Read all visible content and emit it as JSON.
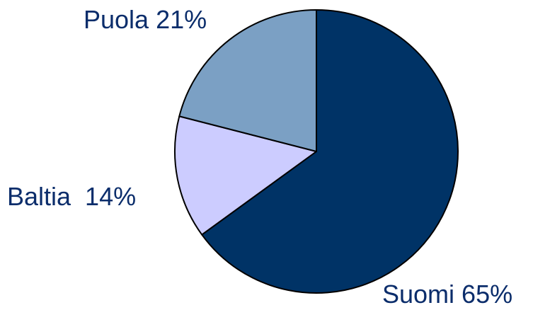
{
  "chart_data": {
    "type": "pie",
    "title": "",
    "slices": [
      {
        "category": "Suomi",
        "value": 65,
        "label": "Suomi 65%",
        "color": "#003366"
      },
      {
        "category": "Baltia",
        "value": 14,
        "label": "Baltia  14%",
        "color": "#CCCCFF"
      },
      {
        "category": "Puola",
        "value": 21,
        "label": "Puola 21%",
        "color": "#7BA0C4"
      }
    ],
    "start_angle": "12 o'clock",
    "direction": "clockwise",
    "legend": "none",
    "label_color": "#0B2D6B"
  }
}
